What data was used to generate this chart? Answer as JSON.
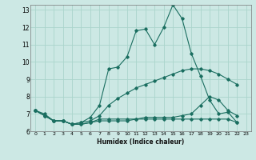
{
  "xlabel": "Humidex (Indice chaleur)",
  "bg_color": "#cce8e4",
  "grid_color": "#aad4cc",
  "line_color": "#1a6e60",
  "xlim": [
    -0.5,
    23.5
  ],
  "ylim": [
    6,
    13.3
  ],
  "xtick_labels": [
    "0",
    "1",
    "2",
    "3",
    "4",
    "5",
    "6",
    "7",
    "8",
    "9",
    "10",
    "11",
    "12",
    "13",
    "14",
    "15",
    "16",
    "17",
    "18",
    "19",
    "20",
    "21",
    "22",
    "23"
  ],
  "yticks": [
    6,
    7,
    8,
    9,
    10,
    11,
    12,
    13
  ],
  "series": [
    {
      "x": [
        0,
        1,
        2,
        3,
        4,
        5,
        6,
        7,
        8,
        9,
        10,
        11,
        12,
        13,
        14,
        15,
        16,
        17,
        18,
        19,
        20,
        21,
        22
      ],
      "y": [
        7.2,
        7.0,
        6.6,
        6.6,
        6.4,
        6.5,
        6.8,
        7.5,
        9.6,
        9.7,
        10.3,
        11.8,
        11.9,
        11.0,
        12.0,
        13.3,
        12.5,
        10.5,
        9.2,
        7.8,
        7.0,
        7.1,
        6.5
      ]
    },
    {
      "x": [
        0,
        1,
        2,
        3,
        4,
        5,
        6,
        7,
        8,
        9,
        10,
        11,
        12,
        13,
        14,
        15,
        16,
        17,
        18,
        19,
        20,
        21,
        22
      ],
      "y": [
        7.2,
        6.9,
        6.6,
        6.6,
        6.4,
        6.5,
        6.6,
        6.9,
        7.5,
        7.9,
        8.2,
        8.5,
        8.7,
        8.9,
        9.1,
        9.3,
        9.5,
        9.6,
        9.6,
        9.5,
        9.3,
        9.0,
        8.7
      ]
    },
    {
      "x": [
        0,
        1,
        2,
        3,
        4,
        5,
        6,
        7,
        8,
        9,
        10,
        11,
        12,
        13,
        14,
        15,
        16,
        17,
        18,
        19,
        20,
        21,
        22
      ],
      "y": [
        7.2,
        6.9,
        6.6,
        6.6,
        6.4,
        6.4,
        6.5,
        6.6,
        6.6,
        6.6,
        6.6,
        6.7,
        6.7,
        6.7,
        6.7,
        6.7,
        6.7,
        6.7,
        6.7,
        6.7,
        6.7,
        6.7,
        6.5
      ]
    },
    {
      "x": [
        0,
        1,
        2,
        3,
        4,
        5,
        6,
        7,
        8,
        9,
        10,
        11,
        12,
        13,
        14,
        15,
        16,
        17,
        18,
        19,
        20,
        21,
        22
      ],
      "y": [
        7.2,
        6.9,
        6.6,
        6.6,
        6.4,
        6.4,
        6.5,
        6.7,
        6.7,
        6.7,
        6.7,
        6.7,
        6.8,
        6.8,
        6.8,
        6.8,
        6.9,
        7.0,
        7.5,
        8.0,
        7.8,
        7.2,
        6.9
      ]
    }
  ]
}
